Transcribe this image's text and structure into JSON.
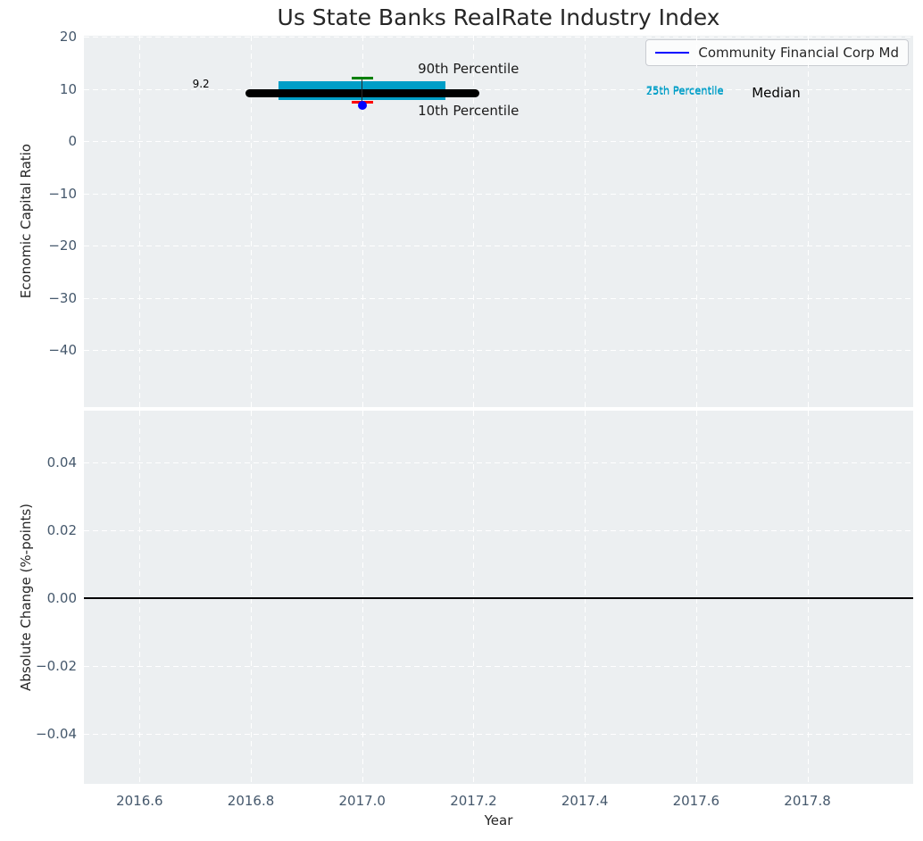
{
  "title": "Us State Banks RealRate Industry Index",
  "legend": {
    "label": "Community Financial Corp Md",
    "line_color": "#0000ff"
  },
  "colors": {
    "plot_bg": "#eceff1",
    "grid": "#ffffff",
    "tick_label": "#45586c",
    "text": "#262626",
    "iqr_band": "#009ec7",
    "p90_cap": "#008000",
    "p10_cap": "#ff0000",
    "company_point": "#0000ff",
    "median_line": "#000000",
    "zero_line": "#000000"
  },
  "axes": {
    "x": {
      "label": "Year",
      "min": 2016.5,
      "max": 2017.99,
      "ticks": [
        {
          "v": 2016.6,
          "label": "2016.6"
        },
        {
          "v": 2016.8,
          "label": "2016.8"
        },
        {
          "v": 2017.0,
          "label": "2017.0"
        },
        {
          "v": 2017.2,
          "label": "2017.2"
        },
        {
          "v": 2017.4,
          "label": "2017.4"
        },
        {
          "v": 2017.6,
          "label": "2017.6"
        },
        {
          "v": 2017.8,
          "label": "2017.8"
        }
      ]
    },
    "y_top": {
      "label": "Economic Capital Ratio",
      "min": -50.9,
      "max": 20.2,
      "ticks": [
        {
          "v": 20,
          "label": "20"
        },
        {
          "v": 10,
          "label": "10"
        },
        {
          "v": 0,
          "label": "0"
        },
        {
          "v": -10,
          "label": "−10"
        },
        {
          "v": -20,
          "label": "−20"
        },
        {
          "v": -30,
          "label": "−30"
        },
        {
          "v": -40,
          "label": "−40"
        }
      ]
    },
    "y_bottom": {
      "label": "Absolute Change (%-points)",
      "min": -0.0547,
      "max": 0.0553,
      "ticks": [
        {
          "v": 0.04,
          "label": "0.04"
        },
        {
          "v": 0.02,
          "label": "0.02"
        },
        {
          "v": 0.0,
          "label": "0.00"
        },
        {
          "v": -0.02,
          "label": "−0.02"
        },
        {
          "v": -0.04,
          "label": "−0.04"
        }
      ]
    }
  },
  "chart_data": [
    {
      "type": "box-summary",
      "subplot": "top",
      "title": "Us State Banks RealRate Industry Index",
      "ylabel": "Economic Capital Ratio",
      "ylim": [
        -50.9,
        20.2
      ],
      "xlim": [
        2016.5,
        2017.99
      ],
      "grid": true,
      "legend_position": "upper right",
      "median": {
        "value": 9.2,
        "x_start": 2016.79,
        "x_end": 2017.21
      },
      "iqr": {
        "p25": 7.9,
        "p75": 11.4,
        "x_start": 2016.85,
        "x_end": 2017.15
      },
      "p90": {
        "value": 12.0,
        "x": 2017.0
      },
      "p10": {
        "value": 7.5,
        "x": 2017.0
      },
      "series": [
        {
          "name": "Community Financial Corp Md",
          "marker": "circle",
          "x": 2017.0,
          "y": 6.9
        }
      ],
      "annotations": [
        {
          "name": "median-value-label",
          "text": "9.2",
          "x": 2016.695,
          "y": 11.0,
          "size": 12,
          "color": "#000000"
        },
        {
          "name": "p90-annotation",
          "text": "90th Percentile",
          "x": 2017.1,
          "y": 13.8,
          "size": 15,
          "color": "#1a1a1a"
        },
        {
          "name": "p10-annotation",
          "text": "10th Percentile",
          "x": 2017.1,
          "y": 5.9,
          "size": 15,
          "color": "#1a1a1a"
        },
        {
          "name": "p75-annotation",
          "text": "75th Percentile",
          "x": 2017.51,
          "y": 9.8,
          "size": 11.5,
          "color": "#009ec7"
        },
        {
          "name": "p25-annotation",
          "text": "25th Percentile",
          "x": 2017.51,
          "y": 9.55,
          "size": 11.5,
          "color": "#009ec7"
        },
        {
          "name": "median-annotation",
          "text": "Median",
          "x": 2017.7,
          "y": 9.2,
          "size": 15,
          "color": "#000000"
        }
      ]
    },
    {
      "type": "line",
      "subplot": "bottom",
      "ylabel": "Absolute Change (%-points)",
      "xlabel": "Year",
      "ylim": [
        -0.0547,
        0.0553
      ],
      "xlim": [
        2016.5,
        2017.99
      ],
      "grid": true,
      "zero_line": {
        "y": 0.0
      },
      "series": []
    }
  ]
}
